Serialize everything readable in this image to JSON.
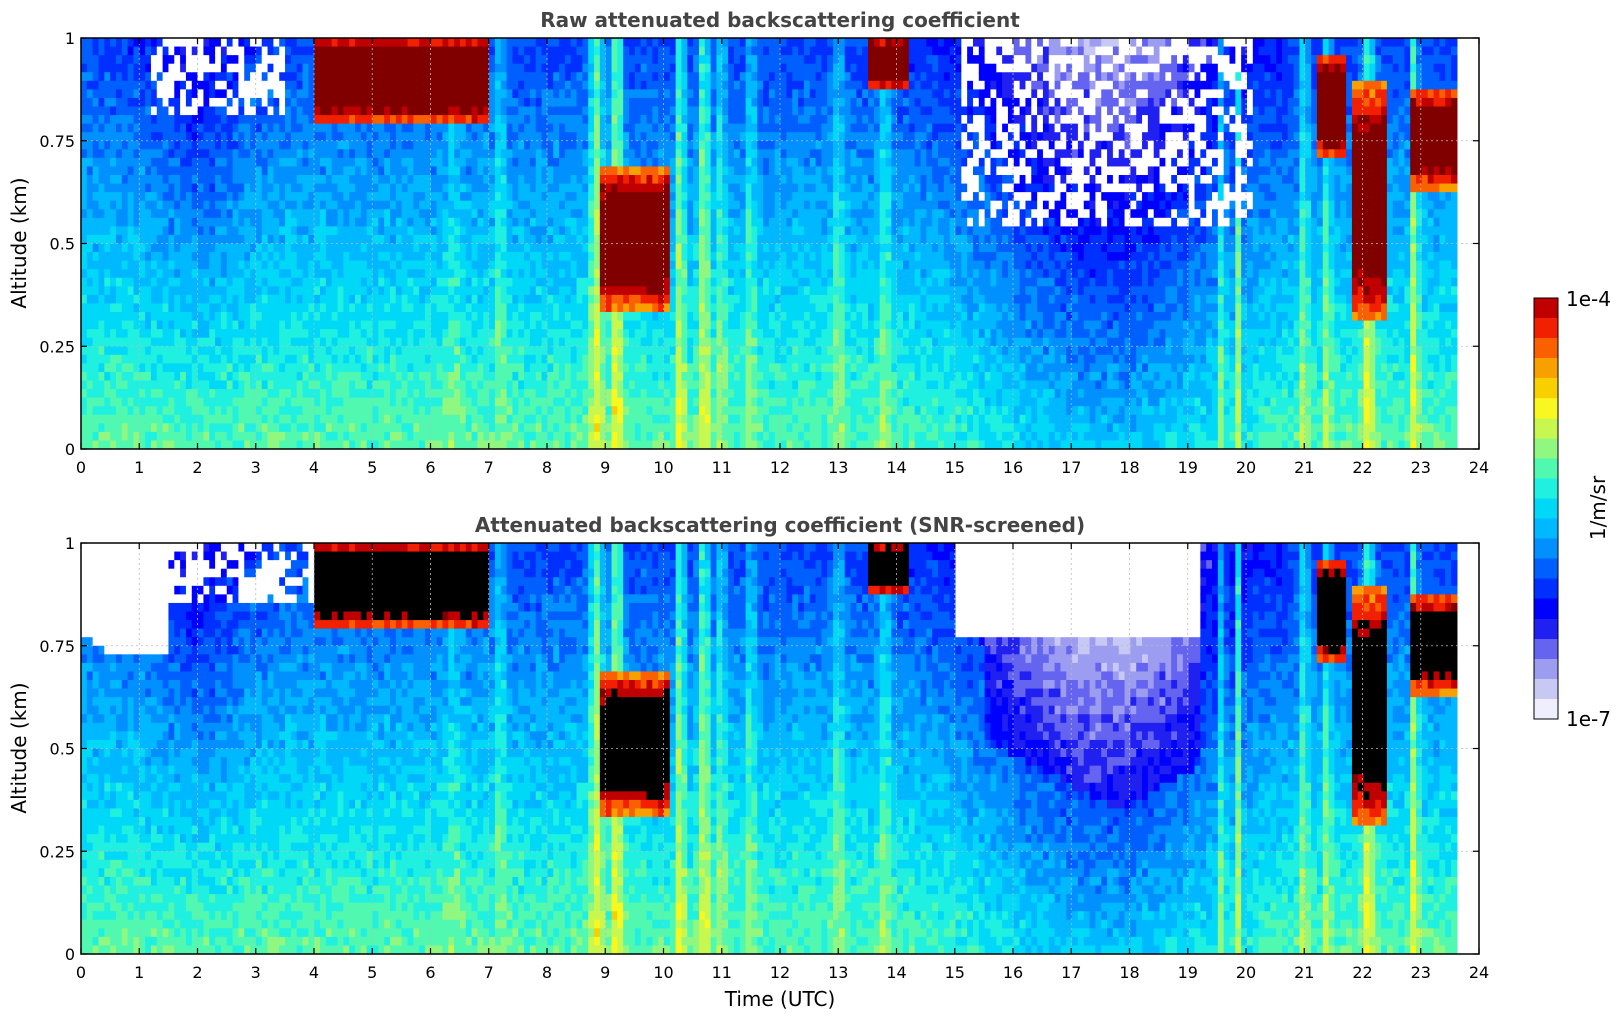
{
  "chart_data": [
    {
      "type": "heatmap",
      "title": "Raw attenuated backscattering coefficient",
      "xlabel": "",
      "ylabel": "Altitude (km)",
      "xlim": [
        0,
        24
      ],
      "ylim": [
        0,
        1
      ],
      "x_ticks": [
        "0",
        "1",
        "2",
        "3",
        "4",
        "5",
        "6",
        "7",
        "8",
        "9",
        "10",
        "11",
        "12",
        "13",
        "14",
        "15",
        "16",
        "17",
        "18",
        "19",
        "20",
        "21",
        "22",
        "23",
        "24"
      ],
      "y_ticks": [
        "0",
        "0.25",
        "0.5",
        "0.75",
        "1"
      ],
      "grid": true,
      "color_scale": "log",
      "description_values": {
        "layers": [
          {
            "x_start": 4.0,
            "x_end": 7.0,
            "y_bottom": 0.8,
            "y_top": 1.0,
            "level": "max"
          },
          {
            "x_start": 8.9,
            "x_end": 10.1,
            "y_bottom": 0.35,
            "y_top": 0.65,
            "level": "max"
          },
          {
            "x_start": 21.8,
            "x_end": 22.5,
            "y_bottom": 0.3,
            "y_top": 0.85,
            "level": "max"
          },
          {
            "x_start": 22.8,
            "x_end": 23.6,
            "y_bottom": 0.65,
            "y_top": 0.85,
            "level": "max"
          }
        ]
      }
    },
    {
      "type": "heatmap",
      "title": "Attenuated backscattering coefficient (SNR-screened)",
      "xlabel": "Time (UTC)",
      "ylabel": "Altitude (km)",
      "xlim": [
        0,
        24
      ],
      "ylim": [
        0,
        1
      ],
      "x_ticks": [
        "0",
        "1",
        "2",
        "3",
        "4",
        "5",
        "6",
        "7",
        "8",
        "9",
        "10",
        "11",
        "12",
        "13",
        "14",
        "15",
        "16",
        "17",
        "18",
        "19",
        "20",
        "21",
        "22",
        "23",
        "24"
      ],
      "y_ticks": [
        "0",
        "0.25",
        "0.5",
        "0.75",
        "1"
      ],
      "grid": true,
      "color_scale": "log"
    }
  ],
  "colorbar": {
    "label": "1/m/sr",
    "max_label": "1e-4",
    "min_label": "1e-7",
    "colors": [
      "#eeeeff",
      "#c8c8f5",
      "#9c9cf0",
      "#6464f0",
      "#2020f0",
      "#0000ff",
      "#0030ff",
      "#0060ff",
      "#0090ff",
      "#00b8ff",
      "#00d8f8",
      "#20f0e0",
      "#50f8b0",
      "#90f880",
      "#c8f850",
      "#f8f820",
      "#f8d000",
      "#f8a000",
      "#f86000",
      "#f02000",
      "#c00000",
      "#800000"
    ]
  }
}
